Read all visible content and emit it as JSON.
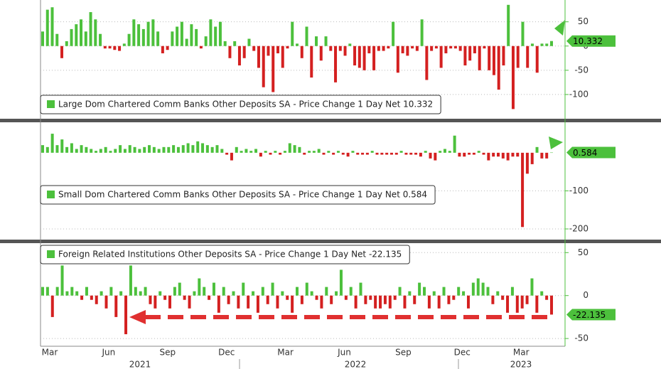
{
  "chart_data": [
    {
      "type": "bar",
      "legend": "Large Dom Chartered Comm Banks Other Deposits SA - Price Change 1 Day Net 10.332",
      "last_label": "10.332",
      "ylim": [
        -150,
        95
      ],
      "yticks": [
        50,
        0,
        -50,
        -100
      ],
      "pos_color": "#4cc03c",
      "neg_color": "#d42020",
      "values": [
        30,
        75,
        80,
        25,
        -25,
        10,
        35,
        45,
        55,
        30,
        70,
        55,
        25,
        -5,
        -5,
        -8,
        -10,
        5,
        25,
        55,
        45,
        35,
        50,
        55,
        30,
        -15,
        -8,
        30,
        40,
        50,
        15,
        45,
        35,
        -5,
        20,
        55,
        40,
        50,
        10,
        -25,
        10,
        -40,
        -25,
        15,
        -10,
        -45,
        -85,
        -20,
        -95,
        -15,
        -45,
        -5,
        50,
        5,
        -25,
        40,
        -65,
        20,
        -30,
        20,
        -10,
        -75,
        -10,
        -20,
        5,
        -40,
        -45,
        -50,
        -15,
        -50,
        -10,
        -10,
        -5,
        50,
        -55,
        -15,
        -20,
        -5,
        -10,
        55,
        -70,
        -10,
        -5,
        -45,
        -15,
        -5,
        -5,
        -10,
        -40,
        -30,
        -15,
        -50,
        -5,
        -50,
        -60,
        -90,
        -40,
        85,
        -130,
        -45,
        50,
        -45,
        5,
        -55,
        5,
        5,
        10.332
      ]
    },
    {
      "type": "bar",
      "legend": "Small Dom Chartered Comm Banks Other Deposits SA - Price Change 1 Day Net 0.584",
      "last_label": "0.584",
      "ylim": [
        -228,
        80
      ],
      "yticks": [
        -100,
        -200
      ],
      "pos_color": "#4cc03c",
      "neg_color": "#d42020",
      "values": [
        20,
        15,
        50,
        20,
        35,
        15,
        25,
        10,
        20,
        15,
        10,
        5,
        10,
        15,
        5,
        10,
        20,
        10,
        20,
        15,
        10,
        15,
        20,
        15,
        10,
        15,
        15,
        20,
        15,
        20,
        25,
        20,
        30,
        25,
        20,
        15,
        20,
        10,
        -5,
        -20,
        15,
        5,
        10,
        5,
        10,
        -10,
        5,
        -5,
        5,
        -5,
        5,
        25,
        20,
        15,
        -5,
        5,
        5,
        10,
        -5,
        5,
        -5,
        5,
        -5,
        -10,
        5,
        -5,
        -5,
        -5,
        5,
        -5,
        -5,
        -5,
        -5,
        -5,
        5,
        -5,
        -5,
        -5,
        -10,
        5,
        -15,
        -20,
        5,
        10,
        5,
        45,
        -10,
        -10,
        -5,
        -5,
        5,
        -5,
        -20,
        -10,
        -10,
        -15,
        -20,
        -10,
        -10,
        -195,
        -55,
        -30,
        15,
        -15,
        -15,
        0.584
      ]
    },
    {
      "type": "bar",
      "legend": "Foreign Related Institutions Other Deposits SA - Price Change 1 Day Net -22.135",
      "last_label": "-22.135",
      "ylim": [
        -59,
        61
      ],
      "yticks": [
        50,
        0,
        -50
      ],
      "pos_color": "#4cc03c",
      "neg_color": "#d42020",
      "values": [
        10,
        10,
        -25,
        10,
        35,
        5,
        10,
        5,
        -5,
        10,
        -5,
        -10,
        5,
        -15,
        10,
        -25,
        5,
        -45,
        35,
        10,
        5,
        10,
        -10,
        -15,
        5,
        -5,
        -15,
        10,
        15,
        -5,
        -15,
        5,
        20,
        10,
        -5,
        15,
        -20,
        10,
        -10,
        5,
        -15,
        15,
        -15,
        5,
        -20,
        10,
        -10,
        15,
        -15,
        5,
        -5,
        -20,
        10,
        -10,
        15,
        5,
        -5,
        -15,
        10,
        -10,
        5,
        30,
        -5,
        10,
        -15,
        15,
        -10,
        -5,
        -15,
        -15,
        -10,
        -15,
        -5,
        10,
        -15,
        5,
        -10,
        15,
        10,
        -15,
        5,
        -15,
        10,
        -10,
        -5,
        10,
        5,
        -15,
        15,
        20,
        15,
        10,
        -10,
        5,
        -5,
        -20,
        10,
        -20,
        -15,
        -10,
        20,
        -20,
        5,
        -5,
        -22.135
      ]
    }
  ],
  "x_axis": {
    "months": [
      "Mar",
      "Jun",
      "Sep",
      "Dec",
      "Mar",
      "Jun",
      "Sep",
      "Dec",
      "Mar"
    ],
    "years": [
      "2021",
      "2022",
      "2023"
    ]
  }
}
